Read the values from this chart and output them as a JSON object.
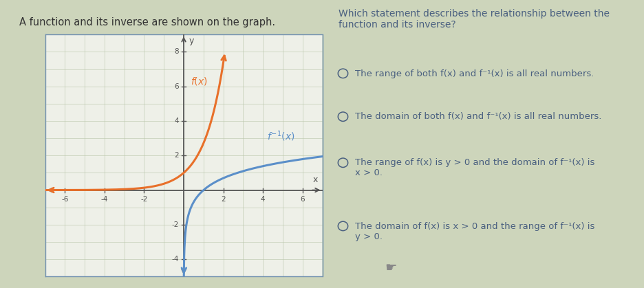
{
  "title_left": "A function and its inverse are shown on the graph.",
  "question": "Which statement describes the relationship between the\nfunction and its inverse?",
  "options": [
    "The range of both f(x) and f⁻¹(x) is all real numbers.",
    "The domain of both f(x) and f⁻¹(x) is all real numbers.",
    "The range of f(x) is y > 0 and the domain of f⁻¹(x) is\nx > 0.",
    "The domain of f(x) is x > 0 and the range of f⁻¹(x) is\ny > 0."
  ],
  "fx_color": "#e8702a",
  "finv_color": "#5b8fc9",
  "bg_outer": "#cdd5bb",
  "bg_graph": "#eef0e8",
  "grid_color": "#b8c4a8",
  "grid_color2": "#c8d4b8",
  "axis_color": "#555555",
  "border_color": "#7090b0",
  "text_color": "#4a6080",
  "title_color": "#333333",
  "xlim": [
    -7,
    7
  ],
  "ylim": [
    -5,
    9
  ],
  "xticks": [
    -6,
    -4,
    -2,
    2,
    4,
    6
  ],
  "yticks": [
    -4,
    -2,
    2,
    4,
    6,
    8
  ]
}
